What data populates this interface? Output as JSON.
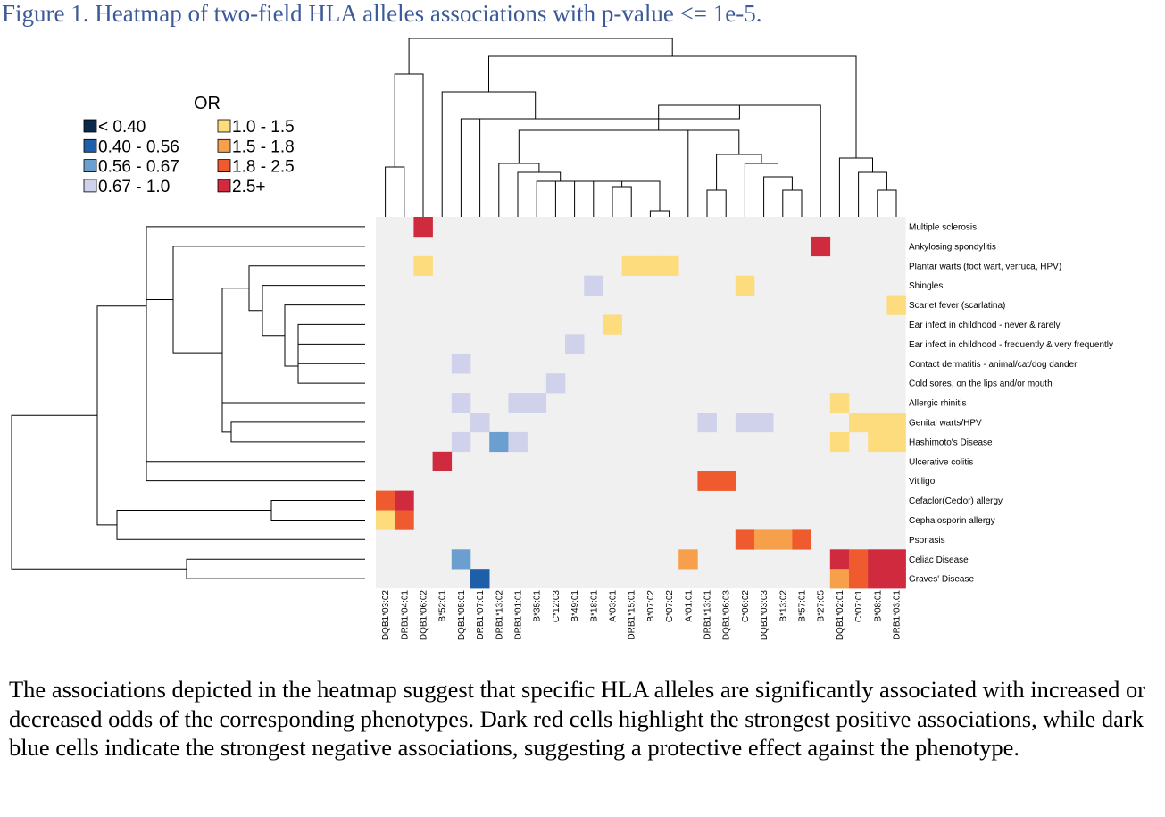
{
  "figure": {
    "title": "Figure 1. Heatmap of two-field HLA alleles associations with p-value <= 1e-5.",
    "caption": "The associations depicted in the heatmap suggest that specific HLA alleles are significantly associated with increased or decreased odds of the corresponding phenotypes. Dark red cells highlight the strongest positive associations, while dark blue cells indicate the strongest negative associations, suggesting a protective effect against the phenotype."
  },
  "chart_data": {
    "type": "heatmap",
    "title": "",
    "xlabel": "",
    "ylabel": "",
    "legend": {
      "title": "OR",
      "placement": "top-left",
      "bins": [
        {
          "label": "< 0.40",
          "color": "#0b2a4a"
        },
        {
          "label": "0.40 - 0.56",
          "color": "#1d5fa8"
        },
        {
          "label": "0.56 - 0.67",
          "color": "#6b9fcf"
        },
        {
          "label": "0.67 - 1.0",
          "color": "#cfd2ea"
        },
        {
          "label": "1.0 - 1.5",
          "color": "#fddc7e"
        },
        {
          "label": "1.5 - 1.8",
          "color": "#f7a04c"
        },
        {
          "label": "1.8 - 2.5",
          "color": "#ef5a2f"
        },
        {
          "label": "2.5+",
          "color": "#cf2a3e"
        }
      ]
    },
    "background_color": "#f0f0f0",
    "columns": [
      "DQB1*03:02",
      "DRB1*04:01",
      "DQB1*06:02",
      "B*52:01",
      "DQB1*05:01",
      "DRB1*07:01",
      "DRB1*13:02",
      "DRB1*01:01",
      "B*35:01",
      "C*12:03",
      "B*49:01",
      "B*18:01",
      "A*03:01",
      "DRB1*15:01",
      "B*07:02",
      "C*07:02",
      "A*01:01",
      "DRB1*13:01",
      "DQB1*06:03",
      "C*06:02",
      "DQB1*03:03",
      "B*13:02",
      "B*57:01",
      "B*27:05",
      "DQB1*02:01",
      "C*07:01",
      "B*08:01",
      "DRB1*03:01"
    ],
    "rows": [
      "Multiple sclerosis",
      "Ankylosing spondylitis",
      "Plantar warts (foot wart, verruca, HPV)",
      "Shingles",
      "Scarlet fever (scarlatina)",
      "Ear infect in childhood - never & rarely",
      "Ear infect in childhood - frequently & very frequently",
      "Contact dermatitis - animal/cat/dog dander",
      "Cold sores, on the lips and/or mouth",
      "Allergic rhinitis",
      "Genital warts/HPV",
      "Hashimoto's Disease",
      "Ulcerative colitis",
      "Vitiligo",
      "Cefaclor(Ceclor) allergy",
      "Cephalosporin allergy",
      "Psoriasis",
      "Celiac Disease",
      "Graves' Disease"
    ],
    "cells": [
      {
        "row": "Multiple sclerosis",
        "col": "DQB1*06:02",
        "bin": 7
      },
      {
        "row": "Ankylosing spondylitis",
        "col": "B*27:05",
        "bin": 7
      },
      {
        "row": "Plantar warts (foot wart, verruca, HPV)",
        "col": "DQB1*06:02",
        "bin": 4
      },
      {
        "row": "Plantar warts (foot wart, verruca, HPV)",
        "col": "DRB1*15:01",
        "bin": 4
      },
      {
        "row": "Plantar warts (foot wart, verruca, HPV)",
        "col": "B*07:02",
        "bin": 4
      },
      {
        "row": "Plantar warts (foot wart, verruca, HPV)",
        "col": "C*07:02",
        "bin": 4
      },
      {
        "row": "Shingles",
        "col": "B*18:01",
        "bin": 3
      },
      {
        "row": "Shingles",
        "col": "C*06:02",
        "bin": 4
      },
      {
        "row": "Scarlet fever (scarlatina)",
        "col": "DRB1*03:01",
        "bin": 4
      },
      {
        "row": "Ear infect in childhood - never & rarely",
        "col": "A*03:01",
        "bin": 4
      },
      {
        "row": "Ear infect in childhood - frequently & very frequently",
        "col": "B*49:01",
        "bin": 3
      },
      {
        "row": "Contact dermatitis - animal/cat/dog dander",
        "col": "DQB1*05:01",
        "bin": 3
      },
      {
        "row": "Cold sores, on the lips and/or mouth",
        "col": "C*12:03",
        "bin": 3
      },
      {
        "row": "Allergic rhinitis",
        "col": "DQB1*05:01",
        "bin": 3
      },
      {
        "row": "Allergic rhinitis",
        "col": "DRB1*01:01",
        "bin": 3
      },
      {
        "row": "Allergic rhinitis",
        "col": "B*35:01",
        "bin": 3
      },
      {
        "row": "Allergic rhinitis",
        "col": "DQB1*02:01",
        "bin": 4
      },
      {
        "row": "Genital warts/HPV",
        "col": "DRB1*07:01",
        "bin": 3
      },
      {
        "row": "Genital warts/HPV",
        "col": "DRB1*13:01",
        "bin": 3
      },
      {
        "row": "Genital warts/HPV",
        "col": "C*06:02",
        "bin": 3
      },
      {
        "row": "Genital warts/HPV",
        "col": "DQB1*03:03",
        "bin": 3
      },
      {
        "row": "Genital warts/HPV",
        "col": "C*07:01",
        "bin": 4
      },
      {
        "row": "Genital warts/HPV",
        "col": "B*08:01",
        "bin": 4
      },
      {
        "row": "Genital warts/HPV",
        "col": "DRB1*03:01",
        "bin": 4
      },
      {
        "row": "Hashimoto's Disease",
        "col": "DQB1*05:01",
        "bin": 3
      },
      {
        "row": "Hashimoto's Disease",
        "col": "DRB1*13:02",
        "bin": 2
      },
      {
        "row": "Hashimoto's Disease",
        "col": "DRB1*01:01",
        "bin": 3
      },
      {
        "row": "Hashimoto's Disease",
        "col": "DQB1*02:01",
        "bin": 4
      },
      {
        "row": "Hashimoto's Disease",
        "col": "B*08:01",
        "bin": 4
      },
      {
        "row": "Hashimoto's Disease",
        "col": "DRB1*03:01",
        "bin": 4
      },
      {
        "row": "Ulcerative colitis",
        "col": "B*52:01",
        "bin": 7
      },
      {
        "row": "Vitiligo",
        "col": "DRB1*13:01",
        "bin": 6
      },
      {
        "row": "Vitiligo",
        "col": "DQB1*06:03",
        "bin": 6
      },
      {
        "row": "Cefaclor(Ceclor) allergy",
        "col": "DQB1*03:02",
        "bin": 6
      },
      {
        "row": "Cefaclor(Ceclor) allergy",
        "col": "DRB1*04:01",
        "bin": 7
      },
      {
        "row": "Cephalosporin allergy",
        "col": "DQB1*03:02",
        "bin": 4
      },
      {
        "row": "Cephalosporin allergy",
        "col": "DRB1*04:01",
        "bin": 6
      },
      {
        "row": "Psoriasis",
        "col": "C*06:02",
        "bin": 6
      },
      {
        "row": "Psoriasis",
        "col": "DQB1*03:03",
        "bin": 5
      },
      {
        "row": "Psoriasis",
        "col": "B*13:02",
        "bin": 5
      },
      {
        "row": "Psoriasis",
        "col": "B*57:01",
        "bin": 6
      },
      {
        "row": "Celiac Disease",
        "col": "DQB1*05:01",
        "bin": 2
      },
      {
        "row": "Celiac Disease",
        "col": "A*01:01",
        "bin": 5
      },
      {
        "row": "Celiac Disease",
        "col": "DQB1*02:01",
        "bin": 7
      },
      {
        "row": "Celiac Disease",
        "col": "C*07:01",
        "bin": 6
      },
      {
        "row": "Celiac Disease",
        "col": "B*08:01",
        "bin": 7
      },
      {
        "row": "Celiac Disease",
        "col": "DRB1*03:01",
        "bin": 7
      },
      {
        "row": "Graves' Disease",
        "col": "DRB1*07:01",
        "bin": 1
      },
      {
        "row": "Graves' Disease",
        "col": "DQB1*02:01",
        "bin": 5
      },
      {
        "row": "Graves' Disease",
        "col": "C*07:01",
        "bin": 6
      },
      {
        "row": "Graves' Disease",
        "col": "B*08:01",
        "bin": 7
      },
      {
        "row": "Graves' Disease",
        "col": "DRB1*03:01",
        "bin": 7
      }
    ]
  }
}
